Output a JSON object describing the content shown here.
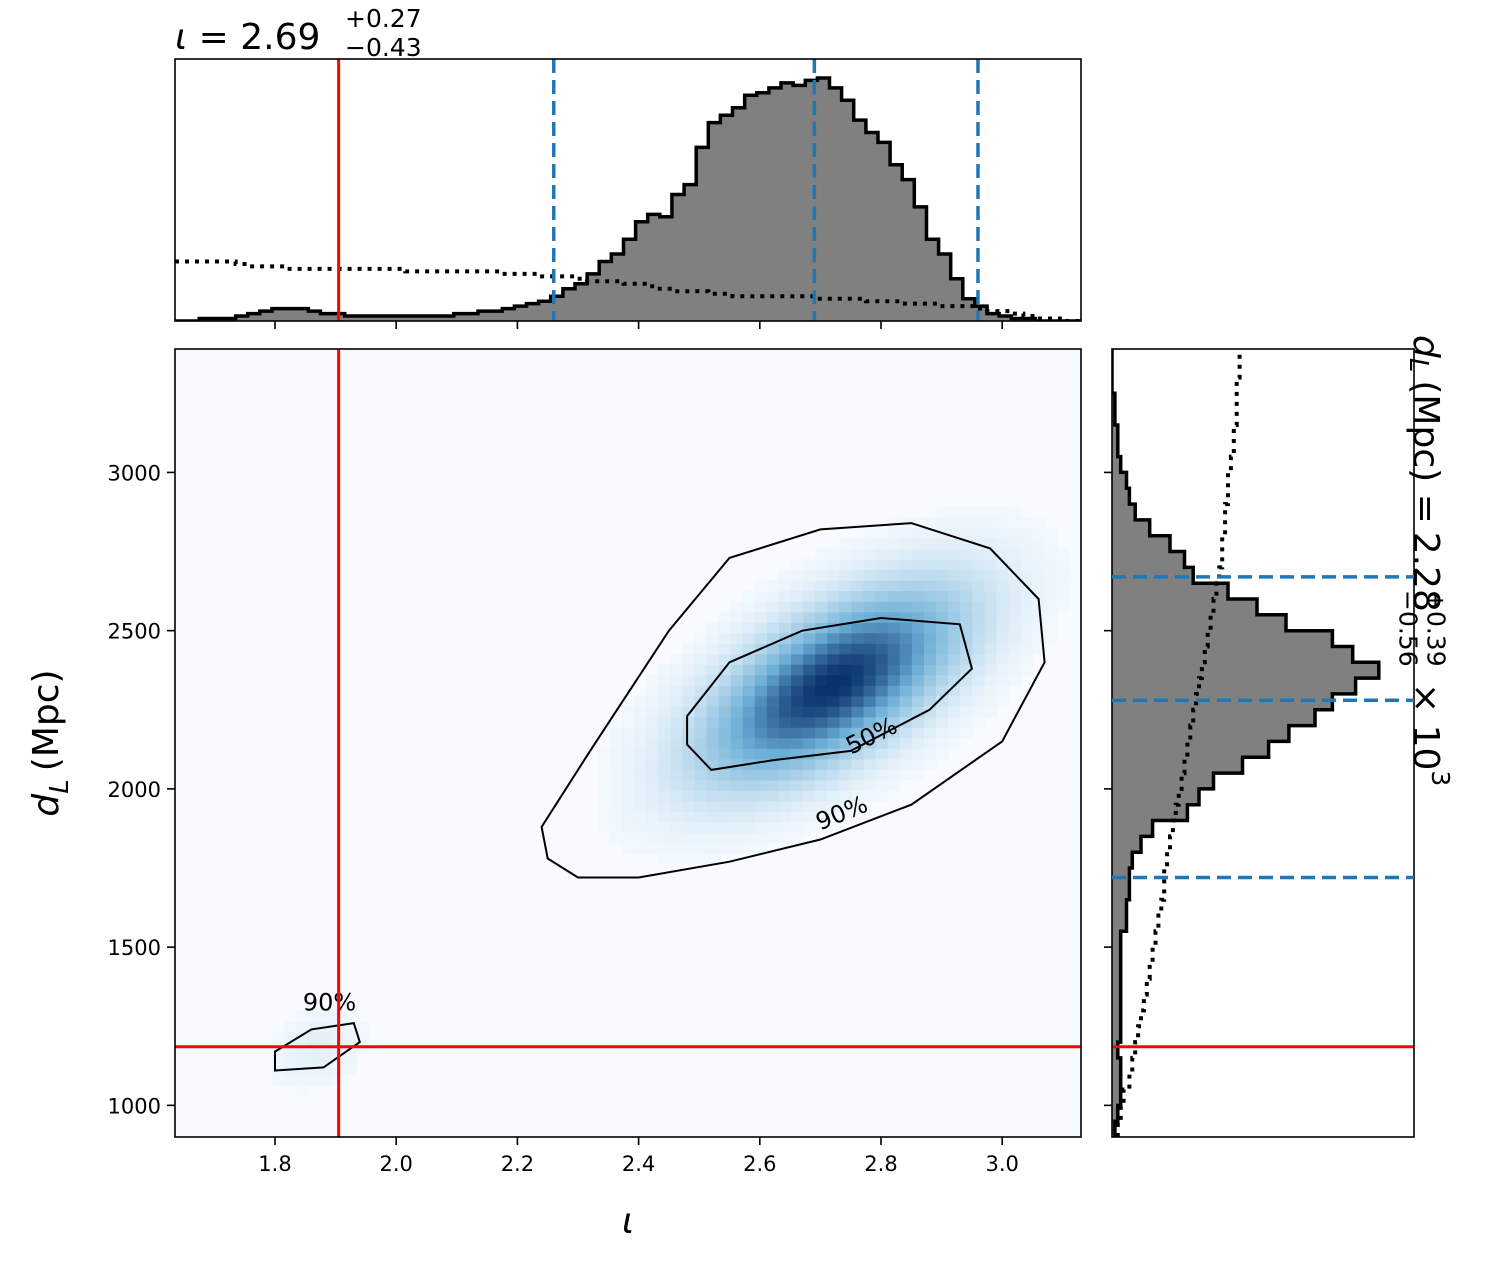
{
  "chart_data": [
    {
      "name": "joint",
      "type": "heatmap",
      "xlabel": "ι",
      "ylabel_main": "d",
      "ylabel_sub": "L",
      "ylabel_unit": "(Mpc)",
      "xlim": [
        1.635,
        3.13
      ],
      "ylim": [
        900,
        3390
      ],
      "x_ticks": [
        1.8,
        2.0,
        2.2,
        2.4,
        2.6,
        2.8,
        3.0
      ],
      "x_tick_labels": [
        "1.8",
        "2.0",
        "2.2",
        "2.4",
        "2.6",
        "2.8",
        "3.0"
      ],
      "y_ticks": [
        1000,
        1500,
        2000,
        2500,
        3000
      ],
      "y_tick_labels": [
        "1000",
        "1500",
        "2000",
        "2500",
        "3000"
      ],
      "truth": {
        "iota": 1.905,
        "dL": 1185
      },
      "density_modes": [
        {
          "iota": 2.72,
          "dL": 2330,
          "sx": 0.14,
          "sy": 200,
          "rho": 0.62,
          "weight": 1.0
        },
        {
          "iota": 1.87,
          "dL": 1180,
          "sx": 0.05,
          "sy": 80,
          "rho": 0.3,
          "weight": 0.08
        }
      ],
      "contours": [
        {
          "level": "90%",
          "label": "90%",
          "points": [
            [
              2.25,
              1780
            ],
            [
              2.3,
              1720
            ],
            [
              2.4,
              1720
            ],
            [
              2.55,
              1770
            ],
            [
              2.7,
              1840
            ],
            [
              2.85,
              1950
            ],
            [
              3.0,
              2150
            ],
            [
              3.07,
              2400
            ],
            [
              3.06,
              2600
            ],
            [
              2.98,
              2760
            ],
            [
              2.85,
              2840
            ],
            [
              2.7,
              2820
            ],
            [
              2.55,
              2730
            ],
            [
              2.45,
              2500
            ],
            [
              2.32,
              2120
            ],
            [
              2.24,
              1880
            ]
          ]
        },
        {
          "level": "50%",
          "label": "50%",
          "points": [
            [
              2.48,
              2140
            ],
            [
              2.52,
              2060
            ],
            [
              2.62,
              2090
            ],
            [
              2.75,
              2120
            ],
            [
              2.88,
              2250
            ],
            [
              2.95,
              2380
            ],
            [
              2.93,
              2520
            ],
            [
              2.8,
              2540
            ],
            [
              2.67,
              2500
            ],
            [
              2.55,
              2400
            ],
            [
              2.48,
              2230
            ]
          ]
        },
        {
          "level": "90%",
          "label": "90%",
          "points": [
            [
              1.8,
              1110
            ],
            [
              1.88,
              1120
            ],
            [
              1.94,
              1200
            ],
            [
              1.93,
              1260
            ],
            [
              1.86,
              1240
            ],
            [
              1.8,
              1170
            ]
          ]
        }
      ],
      "contour_labels": [
        {
          "text": "50%",
          "iota": 2.79,
          "dL": 2145,
          "angle": -26
        },
        {
          "text": "90%",
          "iota": 2.74,
          "dL": 1900,
          "angle": -22
        },
        {
          "text": "90%",
          "iota": 1.89,
          "dL": 1300,
          "angle": 0
        }
      ]
    },
    {
      "name": "iota-marginal",
      "type": "area",
      "title_param": "ι",
      "title_value": "2.69",
      "title_plus": "+0.27",
      "title_minus": "−0.43",
      "xlim": [
        1.635,
        3.13
      ],
      "bin_width": 0.02,
      "bin_start": 1.635,
      "posterior": [
        0,
        0,
        0.01,
        0.01,
        0.01,
        0.02,
        0.03,
        0.04,
        0.05,
        0.05,
        0.05,
        0.04,
        0.03,
        0.03,
        0.02,
        0.02,
        0.02,
        0.02,
        0.02,
        0.02,
        0.02,
        0.02,
        0.02,
        0.03,
        0.03,
        0.04,
        0.04,
        0.05,
        0.06,
        0.07,
        0.08,
        0.1,
        0.13,
        0.15,
        0.19,
        0.24,
        0.27,
        0.33,
        0.4,
        0.43,
        0.42,
        0.51,
        0.55,
        0.7,
        0.8,
        0.83,
        0.86,
        0.91,
        0.92,
        0.94,
        0.96,
        0.95,
        0.97,
        0.98,
        0.94,
        0.89,
        0.81,
        0.76,
        0.72,
        0.63,
        0.57,
        0.46,
        0.33,
        0.27,
        0.17,
        0.09,
        0.06,
        0.03,
        0.02,
        0.01,
        0.01,
        0.0,
        0.0,
        0.0,
        0.0
      ],
      "prior": [
        0.24,
        0.24,
        0.24,
        0.24,
        0.24,
        0.23,
        0.22,
        0.22,
        0.22,
        0.21,
        0.21,
        0.21,
        0.21,
        0.21,
        0.21,
        0.21,
        0.21,
        0.21,
        0.21,
        0.2,
        0.2,
        0.2,
        0.2,
        0.2,
        0.2,
        0.2,
        0.2,
        0.19,
        0.19,
        0.19,
        0.18,
        0.18,
        0.18,
        0.17,
        0.16,
        0.16,
        0.16,
        0.15,
        0.15,
        0.14,
        0.13,
        0.12,
        0.12,
        0.12,
        0.11,
        0.11,
        0.1,
        0.1,
        0.1,
        0.1,
        0.1,
        0.1,
        0.1,
        0.09,
        0.09,
        0.09,
        0.09,
        0.08,
        0.08,
        0.08,
        0.07,
        0.07,
        0.07,
        0.06,
        0.06,
        0.06,
        0.05,
        0.04,
        0.04,
        0.03,
        0.02,
        0.01,
        0.01,
        0.0,
        0.0
      ],
      "quantiles": [
        2.26,
        2.69,
        2.96
      ],
      "truth": 1.905
    },
    {
      "name": "dL-marginal",
      "type": "area",
      "title_param": "d",
      "title_sub": "L",
      "title_unit": "(Mpc) =",
      "title_value": "2.28",
      "title_plus": "+0.39",
      "title_minus": "−0.56",
      "title_scale": "× 10",
      "title_exp": "3",
      "ylim": [
        900,
        3390
      ],
      "bin_width": 50,
      "bin_start": 900,
      "posterior": [
        0.01,
        0.02,
        0.03,
        0.03,
        0.03,
        0.02,
        0.03,
        0.03,
        0.03,
        0.03,
        0.03,
        0.03,
        0.03,
        0.05,
        0.05,
        0.06,
        0.06,
        0.07,
        0.1,
        0.14,
        0.26,
        0.3,
        0.35,
        0.45,
        0.54,
        0.61,
        0.7,
        0.76,
        0.84,
        0.92,
        0.83,
        0.76,
        0.6,
        0.5,
        0.4,
        0.28,
        0.25,
        0.2,
        0.13,
        0.08,
        0.06,
        0.05,
        0.03,
        0.02,
        0.02,
        0.01,
        0.01,
        0.0,
        0.0,
        0.0
      ],
      "prior": [
        0.02,
        0.03,
        0.04,
        0.06,
        0.07,
        0.08,
        0.09,
        0.1,
        0.11,
        0.12,
        0.13,
        0.14,
        0.15,
        0.16,
        0.17,
        0.18,
        0.18,
        0.19,
        0.2,
        0.21,
        0.22,
        0.23,
        0.24,
        0.25,
        0.26,
        0.27,
        0.28,
        0.29,
        0.3,
        0.31,
        0.32,
        0.33,
        0.34,
        0.35,
        0.36,
        0.37,
        0.38,
        0.38,
        0.39,
        0.39,
        0.4,
        0.4,
        0.41,
        0.42,
        0.42,
        0.43,
        0.43,
        0.43,
        0.44,
        0.44
      ],
      "quantiles": [
        1720,
        2280,
        2670
      ],
      "truth": 1185
    }
  ],
  "colors": {
    "hist_fill": "#808080",
    "hist_edge": "#000000",
    "quantile": "#1f77b4",
    "truth": "#ff0000",
    "cmap_low": "#f7fbff",
    "cmap_high": "#08306b"
  }
}
